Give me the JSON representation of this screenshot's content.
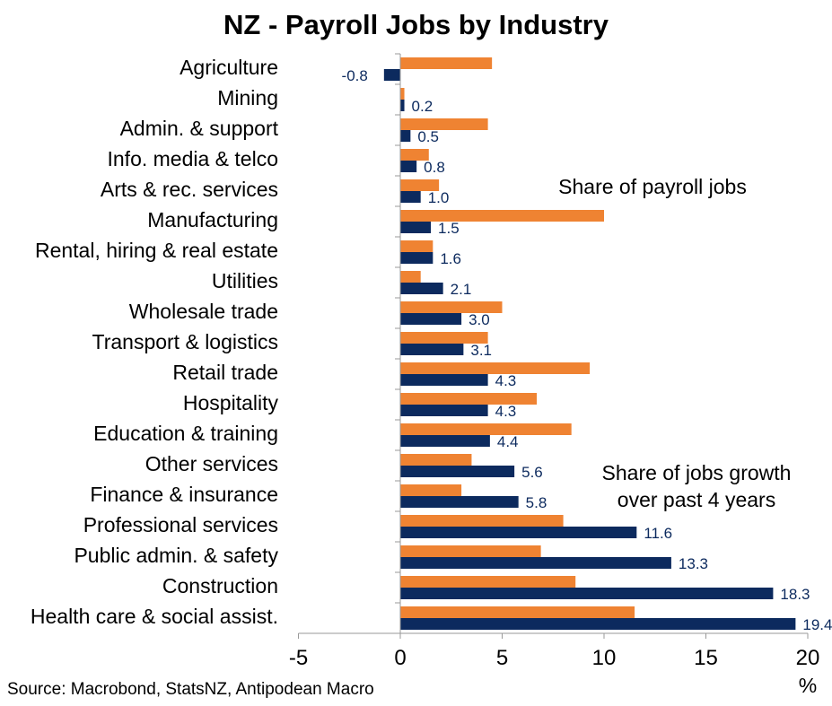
{
  "title": "NZ - Payroll Jobs by Industry",
  "source": "Source: Macrobond, StatsNZ, Antipodean Macro",
  "colors": {
    "share_jobs": "#ef8332",
    "share_growth": "#0c2a5e"
  },
  "chart_data": {
    "type": "bar",
    "orientation": "horizontal",
    "title": "NZ - Payroll Jobs by Industry",
    "xlabel": "%",
    "xlim": [
      -5,
      20
    ],
    "xticks": [
      "-5",
      "0",
      "5",
      "10",
      "15",
      "20"
    ],
    "categories": [
      "Agriculture",
      "Mining",
      "Admin. & support",
      "Info. media & telco",
      "Arts & rec. services",
      "Manufacturing",
      "Rental, hiring & real estate",
      "Utilities",
      "Wholesale trade",
      "Transport & logistics",
      "Retail trade",
      "Hospitality",
      "Education & training",
      "Other services",
      "Finance & insurance",
      "Professional services",
      "Public admin. & safety",
      "Construction",
      "Health care & social assist."
    ],
    "series": [
      {
        "name": "Share of payroll jobs",
        "values": [
          4.5,
          0.2,
          4.3,
          1.4,
          1.9,
          10.0,
          1.6,
          1.0,
          5.0,
          4.3,
          9.3,
          6.7,
          8.4,
          3.5,
          3.0,
          8.0,
          6.9,
          8.6,
          11.5
        ]
      },
      {
        "name": "Share of jobs growth over past 4 years",
        "values": [
          -0.8,
          0.2,
          0.5,
          0.8,
          1.0,
          1.5,
          1.6,
          2.1,
          3.0,
          3.1,
          4.3,
          4.3,
          4.4,
          5.6,
          5.8,
          11.6,
          13.3,
          18.3,
          19.4
        ]
      }
    ],
    "value_labels": [
      "-0.8",
      "0.2",
      "0.5",
      "0.8",
      "1.0",
      "1.5",
      "1.6",
      "2.1",
      "3.0",
      "3.1",
      "4.3",
      "4.3",
      "4.4",
      "5.6",
      "5.8",
      "11.6",
      "13.3",
      "18.3",
      "19.4"
    ],
    "annotations": [
      "Share of payroll jobs",
      "Share of jobs growth",
      "over past 4 years"
    ],
    "legend": "inline annotations",
    "grid": false
  }
}
